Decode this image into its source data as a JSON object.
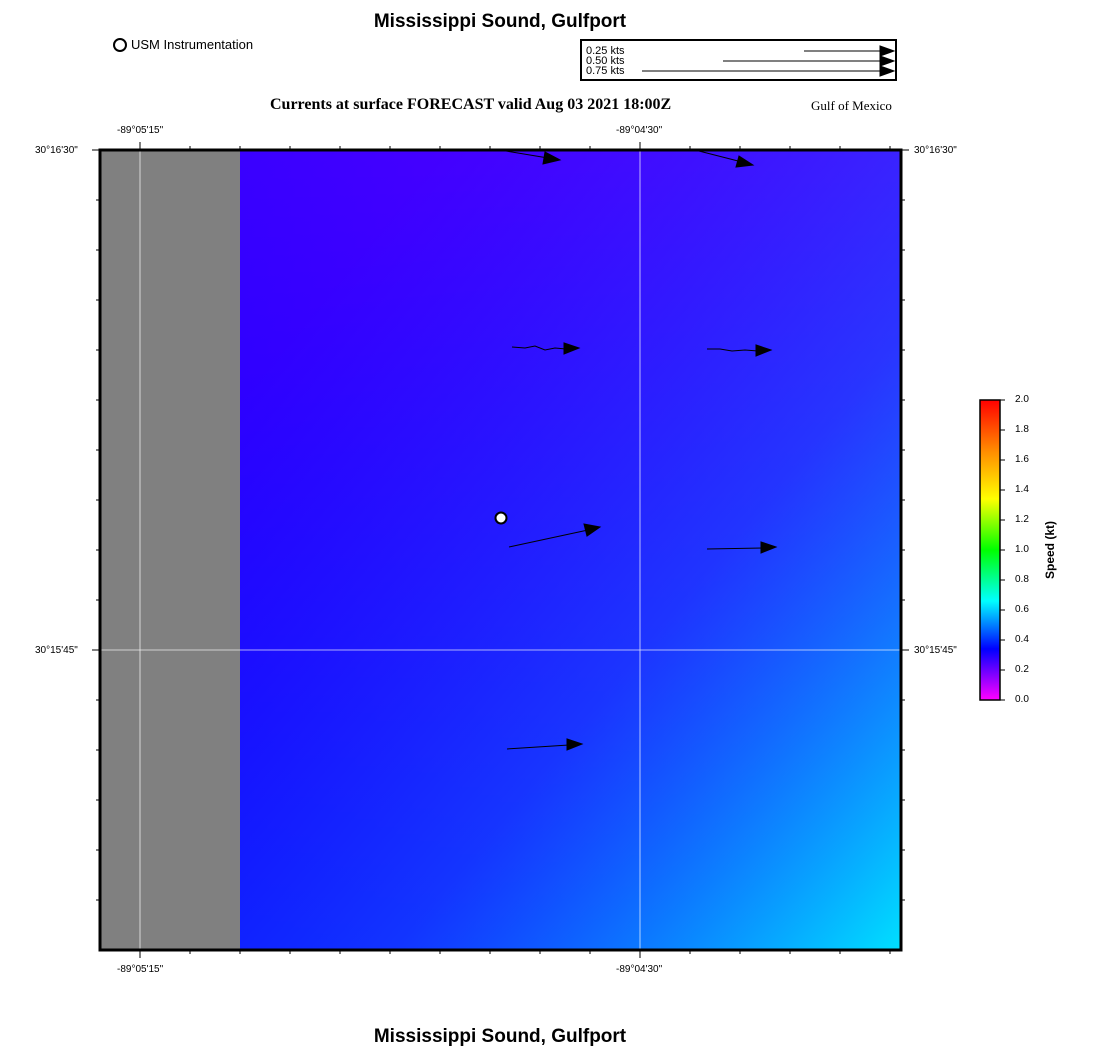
{
  "title": "Mississippi Sound, Gulfport",
  "footer_title": "Mississippi Sound, Gulfport",
  "subtitle": "Currents at surface FORECAST  valid Aug 03 2021 18:00Z",
  "region_label": "Gulf of Mexico",
  "usm_legend": "USM Instrumentation",
  "scale_legend": [
    "0.25 kts",
    "0.50 kts",
    "0.75 kts"
  ],
  "axes": {
    "top_lon": [
      "-89°05'15\"",
      "-89°04'30\""
    ],
    "bottom_lon": [
      "-89°05'15\"",
      "-89°04'30\""
    ],
    "left_lat": [
      "30°16'30\"",
      "30°15'45\""
    ],
    "right_lat": [
      "30°16'30\"",
      "30°15'45\""
    ]
  },
  "colorbar": {
    "label": "Speed (kt)",
    "ticks": [
      "2.0",
      "1.8",
      "1.6",
      "1.4",
      "1.2",
      "1.0",
      "0.8",
      "0.6",
      "0.4",
      "0.2",
      "0.0"
    ],
    "colors": [
      "#ff0000",
      "#ff8c00",
      "#ffff00",
      "#00ff00",
      "#00ffff",
      "#0000ff",
      "#ff00ff"
    ]
  },
  "map": {
    "land_color": "#808080",
    "water_colors": {
      "top_left": "#4000ff",
      "top_right": "#6000ff",
      "bottom_left": "#0000ff",
      "bottom_right": "#00ddff"
    }
  }
}
